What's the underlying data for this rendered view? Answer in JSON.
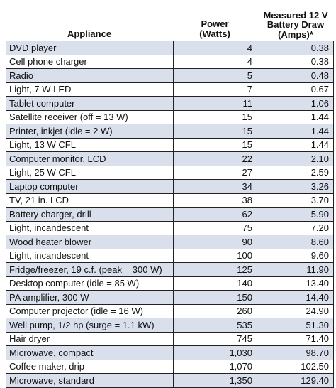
{
  "header": {
    "appliance": "Appliance",
    "power_line1": "Power",
    "power_line2": "(Watts)",
    "amps_line1": "Measured 12 V",
    "amps_line2": "Battery Draw",
    "amps_line3": "(Amps)*"
  },
  "rows": [
    {
      "appliance": "DVD player",
      "power": "4",
      "amps": "0.38"
    },
    {
      "appliance": "Cell phone charger",
      "power": "4",
      "amps": "0.38"
    },
    {
      "appliance": "Radio",
      "power": "5",
      "amps": "0.48"
    },
    {
      "appliance": "Light, 7 W LED",
      "power": "7",
      "amps": "0.67"
    },
    {
      "appliance": "Tablet computer",
      "power": "11",
      "amps": "1.06"
    },
    {
      "appliance": "Satellite receiver (off = 13 W)",
      "power": "15",
      "amps": "1.44"
    },
    {
      "appliance": "Printer, inkjet (idle = 2 W)",
      "power": "15",
      "amps": "1.44"
    },
    {
      "appliance": "Light, 13 W CFL",
      "power": "15",
      "amps": "1.44"
    },
    {
      "appliance": "Computer monitor, LCD",
      "power": "22",
      "amps": "2.10"
    },
    {
      "appliance": "Light, 25 W CFL",
      "power": "27",
      "amps": "2.59"
    },
    {
      "appliance": "Laptop computer",
      "power": "34",
      "amps": "3.26"
    },
    {
      "appliance": "TV, 21 in. LCD",
      "power": "38",
      "amps": "3.70"
    },
    {
      "appliance": "Battery charger, drill",
      "power": "62",
      "amps": "5.90"
    },
    {
      "appliance": "Light, incandescent",
      "power": "75",
      "amps": "7.20"
    },
    {
      "appliance": "Wood heater blower",
      "power": "90",
      "amps": "8.60"
    },
    {
      "appliance": "Light, incandescent",
      "power": "100",
      "amps": "9.60"
    },
    {
      "appliance": "Fridge/freezer, 19 c.f. (peak = 300 W)",
      "power": "125",
      "amps": "11.90"
    },
    {
      "appliance": "Desktop computer (idle = 85 W)",
      "power": "140",
      "amps": "13.40"
    },
    {
      "appliance": "PA amplifier, 300 W",
      "power": "150",
      "amps": "14.40"
    },
    {
      "appliance": "Computer projector (idle = 16 W)",
      "power": "260",
      "amps": "24.90"
    },
    {
      "appliance": "Well pump, 1/2 hp (surge = 1.1 kW)",
      "power": "535",
      "amps": "51.30"
    },
    {
      "appliance": "Hair dryer",
      "power": "745",
      "amps": "71.40"
    },
    {
      "appliance": "Microwave, compact",
      "power": "1,030",
      "amps": "98.70"
    },
    {
      "appliance": "Coffee maker, drip",
      "power": "1,070",
      "amps": "102.50"
    },
    {
      "appliance": "Microwave, standard",
      "power": "1,350",
      "amps": "129.40"
    }
  ]
}
